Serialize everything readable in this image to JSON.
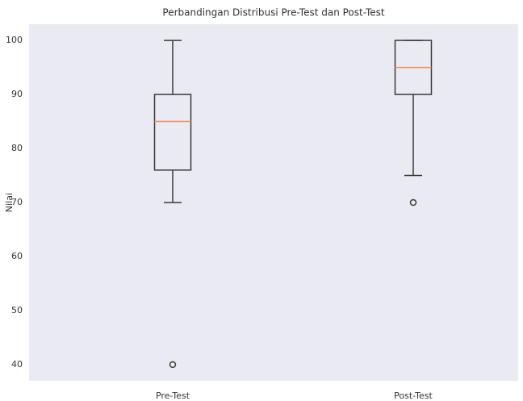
{
  "chart_data": {
    "type": "box",
    "title": "Perbandingan Distribusi Pre-Test dan Post-Test",
    "y_label": "Nilai",
    "categories": [
      "Pre-Test",
      "Post-Test"
    ],
    "boxes": [
      {
        "whisker_low": 70,
        "q1": 76,
        "median": 85,
        "q3": 90,
        "whisker_high": 100,
        "outliers": [
          40
        ]
      },
      {
        "whisker_low": 75,
        "q1": 90,
        "median": 95,
        "q3": 100,
        "whisker_high": 100,
        "outliers": [
          70
        ]
      }
    ],
    "box_color": "#3a3a3a",
    "median_color": "#f28e5b",
    "background": "#eaeaf2",
    "ylim": [
      37,
      103
    ],
    "yticks": [
      40,
      50,
      60,
      70,
      80,
      90,
      100
    ],
    "grid": false
  }
}
